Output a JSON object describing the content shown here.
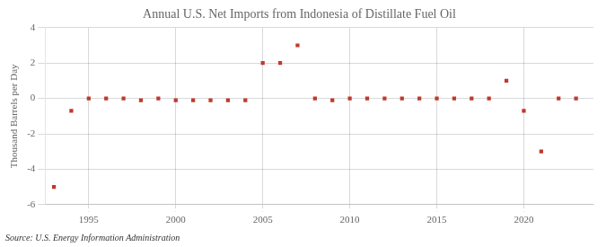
{
  "chart_data": {
    "type": "scatter",
    "title": "Annual U.S. Net Imports from Indonesia of Distillate Fuel Oil",
    "ylabel": "Thousand Barrels per Day",
    "annotation": "Source: U.S. Energy Information Administration",
    "x": [
      1993,
      1994,
      1995,
      1996,
      1997,
      1998,
      1999,
      2000,
      2001,
      2002,
      2003,
      2004,
      2005,
      2006,
      2007,
      2008,
      2009,
      2010,
      2011,
      2012,
      2013,
      2014,
      2015,
      2016,
      2017,
      2018,
      2019,
      2020,
      2021,
      2022,
      2023
    ],
    "values": [
      -5.0,
      -0.7,
      0.0,
      0.0,
      0.0,
      -0.1,
      0.0,
      -0.1,
      -0.1,
      -0.1,
      -0.1,
      -0.1,
      2.0,
      2.0,
      3.0,
      0.0,
      -0.1,
      0.0,
      0.0,
      0.0,
      0.0,
      0.0,
      0.0,
      0.0,
      0.0,
      0.0,
      1.0,
      -0.7,
      -3.0,
      0.0,
      0.0
    ],
    "color": "#c0392b",
    "marker": "square",
    "xlim": [
      1992.5,
      2024
    ],
    "xticks": [
      1995,
      2000,
      2005,
      2010,
      2015,
      2020
    ],
    "ylim": [
      -6,
      4
    ],
    "yticks": [
      -6,
      -4,
      -2,
      0,
      2,
      4
    ],
    "grid": true
  }
}
